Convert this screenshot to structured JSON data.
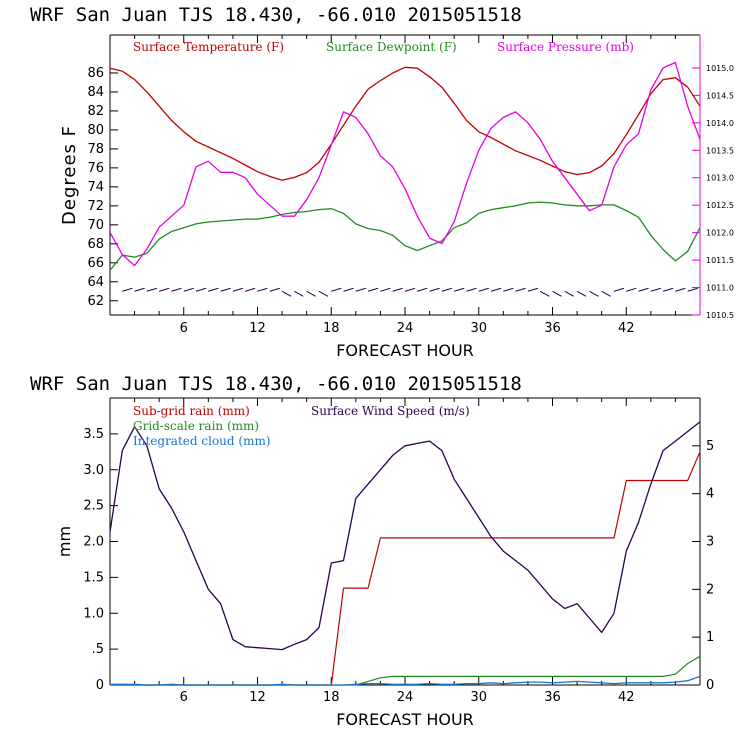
{
  "chart_data": [
    {
      "type": "line",
      "title": "WRF   San Juan TJS  18.430, -66.010  2015051518",
      "xlabel": "FORECAST HOUR",
      "ylabel": "Degrees F",
      "xlim": [
        0,
        48
      ],
      "ylim": [
        60.5,
        90
      ],
      "y2lim": [
        1010.5,
        1015.6
      ],
      "xticks": [
        "6",
        "12",
        "18",
        "24",
        "30",
        "36",
        "42"
      ],
      "xtick_values": [
        6,
        12,
        18,
        24,
        30,
        36,
        42
      ],
      "yticks": [
        "62",
        "64",
        "66",
        "68",
        "70",
        "72",
        "74",
        "76",
        "78",
        "80",
        "82",
        "84",
        "86"
      ],
      "y2ticks": [
        "1010.5",
        "1011.0",
        "1011.5",
        "1012.0",
        "1012.5",
        "1013.0",
        "1013.5",
        "1014.0",
        "1014.5",
        "1015.0"
      ],
      "x": [
        0,
        1,
        2,
        3,
        4,
        5,
        6,
        7,
        8,
        9,
        10,
        11,
        12,
        13,
        14,
        15,
        16,
        17,
        18,
        19,
        20,
        21,
        22,
        23,
        24,
        25,
        26,
        27,
        28,
        29,
        30,
        31,
        32,
        33,
        34,
        35,
        36,
        37,
        38,
        39,
        40,
        41,
        42,
        43,
        44,
        45,
        46,
        47,
        48
      ],
      "series": [
        {
          "name": "Surface Temperature (F)",
          "color": "#c00000",
          "axis": "left",
          "values": [
            86.5,
            86.2,
            85.3,
            84.0,
            82.5,
            81.0,
            79.8,
            78.8,
            78.2,
            77.6,
            77.0,
            76.3,
            75.6,
            75.1,
            74.7,
            75.0,
            75.5,
            76.6,
            78.5,
            80.5,
            82.5,
            84.3,
            85.2,
            86.0,
            86.6,
            86.5,
            85.6,
            84.5,
            82.8,
            81.0,
            79.8,
            79.2,
            78.5,
            77.8,
            77.3,
            76.8,
            76.2,
            75.6,
            75.3,
            75.5,
            76.2,
            77.5,
            79.5,
            81.6,
            83.8,
            85.3,
            85.5,
            84.5,
            82.5
          ]
        },
        {
          "name": "Surface Dewpoint (F)",
          "color": "#228b22",
          "axis": "left",
          "values": [
            65.2,
            66.8,
            66.6,
            67.0,
            68.5,
            69.3,
            69.7,
            70.1,
            70.3,
            70.4,
            70.5,
            70.6,
            70.6,
            70.8,
            71.1,
            71.3,
            71.4,
            71.6,
            71.7,
            71.2,
            70.1,
            69.6,
            69.4,
            68.9,
            67.8,
            67.3,
            67.8,
            68.3,
            69.7,
            70.2,
            71.2,
            71.6,
            71.8,
            72.0,
            72.3,
            72.4,
            72.3,
            72.1,
            72.0,
            72.0,
            72.1,
            72.1,
            71.5,
            70.8,
            68.9,
            67.4,
            66.2,
            67.2,
            69.7
          ]
        },
        {
          "name": "Surface Pressure (mb)",
          "color": "#e600e6",
          "axis": "right",
          "values": [
            1012.0,
            1011.6,
            1011.4,
            1011.7,
            1012.1,
            1012.3,
            1012.5,
            1013.2,
            1013.3,
            1013.1,
            1013.1,
            1013.0,
            1012.7,
            1012.5,
            1012.3,
            1012.3,
            1012.6,
            1013.0,
            1013.6,
            1014.2,
            1014.1,
            1013.8,
            1013.4,
            1013.2,
            1012.8,
            1012.3,
            1011.9,
            1011.8,
            1012.2,
            1012.9,
            1013.5,
            1013.9,
            1014.1,
            1014.2,
            1014.0,
            1013.7,
            1013.3,
            1013.0,
            1012.7,
            1012.4,
            1012.5,
            1013.2,
            1013.6,
            1013.8,
            1014.6,
            1015.0,
            1015.1,
            1014.3,
            1013.7
          ]
        }
      ],
      "wind_barbs_y": 63.0
    },
    {
      "type": "line",
      "title": "WRF   San Juan TJS  18.430, -66.010  2015051518",
      "xlabel": "FORECAST HOUR",
      "ylabel": "mm",
      "xlim": [
        0,
        48
      ],
      "ylim": [
        0,
        4.0
      ],
      "y2lim": [
        0,
        6.0
      ],
      "xticks": [
        "6",
        "12",
        "18",
        "24",
        "30",
        "36",
        "42"
      ],
      "xtick_values": [
        6,
        12,
        18,
        24,
        30,
        36,
        42
      ],
      "yticks": [
        "0",
        ".5",
        "1.0",
        "1.5",
        "2.0",
        "2.5",
        "3.0",
        "3.5"
      ],
      "ytick_values": [
        0,
        0.5,
        1.0,
        1.5,
        2.0,
        2.5,
        3.0,
        3.5
      ],
      "y2ticks": [
        "0",
        "1",
        "2",
        "3",
        "4",
        "5"
      ],
      "y2tick_values": [
        0,
        1,
        2,
        3,
        4,
        5
      ],
      "x": [
        0,
        1,
        2,
        3,
        4,
        5,
        6,
        7,
        8,
        9,
        10,
        11,
        12,
        13,
        14,
        15,
        16,
        17,
        18,
        19,
        20,
        21,
        22,
        23,
        24,
        25,
        26,
        27,
        28,
        29,
        30,
        31,
        32,
        33,
        34,
        35,
        36,
        37,
        38,
        39,
        40,
        41,
        42,
        43,
        44,
        45,
        46,
        47,
        48
      ],
      "series": [
        {
          "name": "Sub-grid rain (mm)",
          "color": "#c00000",
          "axis": "left",
          "values": [
            0,
            0,
            0,
            0,
            0,
            0,
            0,
            0,
            0,
            0,
            0,
            0,
            0,
            0,
            0,
            0,
            0,
            0,
            0,
            1.35,
            1.35,
            1.35,
            2.05,
            2.05,
            2.05,
            2.05,
            2.05,
            2.05,
            2.05,
            2.05,
            2.05,
            2.05,
            2.05,
            2.05,
            2.05,
            2.05,
            2.05,
            2.05,
            2.05,
            2.05,
            2.05,
            2.05,
            2.85,
            2.85,
            2.85,
            2.85,
            2.85,
            2.85,
            3.25
          ]
        },
        {
          "name": "Grid-scale rain (mm)",
          "color": "#228b22",
          "axis": "left",
          "values": [
            0,
            0,
            0,
            0,
            0,
            0,
            0,
            0,
            0,
            0,
            0,
            0,
            0,
            0,
            0,
            0,
            0,
            0,
            0,
            0,
            0,
            0.05,
            0.1,
            0.12,
            0.12,
            0.12,
            0.12,
            0.12,
            0.12,
            0.12,
            0.12,
            0.12,
            0.12,
            0.12,
            0.12,
            0.12,
            0.12,
            0.12,
            0.12,
            0.12,
            0.12,
            0.12,
            0.12,
            0.12,
            0.12,
            0.12,
            0.15,
            0.3,
            0.4
          ]
        },
        {
          "name": "Integrated cloud (mm)",
          "color": "#1874cd",
          "axis": "left",
          "values": [
            0.01,
            0.01,
            0.01,
            0,
            0,
            0.01,
            0,
            0,
            0,
            0,
            0,
            0,
            0,
            0,
            0.01,
            0,
            0,
            0,
            0,
            0,
            0.01,
            0.02,
            0.02,
            0.01,
            0.01,
            0.01,
            0.02,
            0.01,
            0.01,
            0.02,
            0.02,
            0.03,
            0.02,
            0.03,
            0.04,
            0.04,
            0.03,
            0.04,
            0.05,
            0.04,
            0.03,
            0.02,
            0.03,
            0.03,
            0.03,
            0.03,
            0.04,
            0.06,
            0.12
          ]
        },
        {
          "name": "Surface Wind Speed (m/s)",
          "color": "#2b0050",
          "axis": "right",
          "values": [
            3.2,
            4.9,
            5.4,
            5.0,
            4.1,
            3.7,
            3.2,
            2.6,
            2.0,
            1.7,
            0.95,
            0.8,
            0.78,
            0.76,
            0.74,
            0.85,
            0.95,
            1.2,
            2.55,
            2.6,
            3.9,
            4.2,
            4.5,
            4.8,
            5.0,
            5.05,
            5.1,
            4.9,
            4.3,
            3.9,
            3.5,
            3.1,
            2.8,
            2.6,
            2.4,
            2.1,
            1.8,
            1.6,
            1.7,
            1.4,
            1.1,
            1.5,
            2.8,
            3.4,
            4.2,
            4.9,
            5.1,
            5.3,
            5.5
          ]
        }
      ]
    }
  ]
}
